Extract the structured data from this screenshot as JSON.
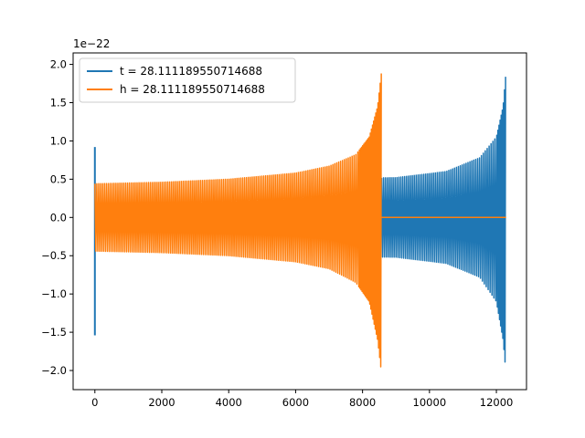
{
  "chart_data": {
    "type": "line",
    "xlim": [
      -650,
      12900
    ],
    "ylim": [
      -2.25,
      2.15
    ],
    "y_offset_label": "1e−22",
    "x_ticks": [
      0,
      2000,
      4000,
      6000,
      8000,
      10000,
      12000
    ],
    "x_tick_labels": [
      "0",
      "2000",
      "4000",
      "6000",
      "8000",
      "10000",
      "12000"
    ],
    "y_ticks": [
      -2.0,
      -1.5,
      -1.0,
      -0.5,
      0.0,
      0.5,
      1.0,
      1.5,
      2.0
    ],
    "y_tick_labels": [
      "−2.0",
      "−1.5",
      "−1.0",
      "−0.5",
      "0.0",
      "0.5",
      "1.0",
      "1.5",
      "2.0"
    ],
    "grid": false,
    "legend_position": "upper-left",
    "series": [
      {
        "name": "t = 28.111189550714688",
        "color": "#1f77b4",
        "x_range": [
          0,
          12290
        ],
        "initial_spike": {
          "x": 0,
          "ymax": 0.92,
          "ymin": -1.54
        },
        "envelope": {
          "x": [
            100,
            3000,
            6000,
            9000,
            10500,
            11500,
            12000,
            12200,
            12290
          ],
          "upper": [
            0.44,
            0.44,
            0.5,
            0.52,
            0.6,
            0.78,
            1.05,
            1.45,
            1.92
          ],
          "lower": [
            -0.44,
            -0.44,
            -0.5,
            -0.52,
            -0.6,
            -0.78,
            -1.1,
            -1.6,
            -2.05
          ]
        },
        "segment": [
          8570,
          12290
        ]
      },
      {
        "name": "h = 28.111189550714688",
        "color": "#ff7f0e",
        "x_range": [
          0,
          12290
        ],
        "envelope": {
          "x": [
            0,
            2000,
            4000,
            6000,
            7000,
            7800,
            8200,
            8450,
            8570
          ],
          "upper": [
            0.44,
            0.46,
            0.5,
            0.58,
            0.67,
            0.82,
            1.05,
            1.45,
            1.92
          ],
          "lower": [
            -0.44,
            -0.46,
            -0.5,
            -0.58,
            -0.67,
            -0.85,
            -1.1,
            -1.6,
            -2.05
          ]
        },
        "segment": [
          0,
          8570
        ],
        "flat_after": 8570
      }
    ]
  }
}
